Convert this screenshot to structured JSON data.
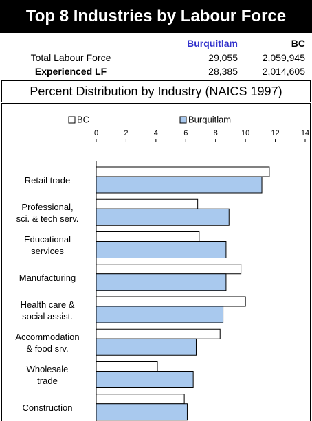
{
  "title": "Top 8 Industries by Labour Force",
  "table": {
    "columns": [
      "Burquitlam",
      "BC"
    ],
    "rows": [
      [
        "Total Labour Force",
        "29,055",
        "2,059,945"
      ],
      [
        "Experienced LF",
        "28,385",
        "2,014,605"
      ]
    ]
  },
  "section_title": "Percent Distribution by Industry (NAICS 1997)",
  "chart_data": {
    "type": "hbar",
    "categories": [
      "Retail trade",
      "Professional,\nsci. & tech serv.",
      "Educational\nservices",
      "Manufacturing",
      "Health care &\nsocial assist.",
      "Accommodation\n& food srv.",
      "Wholesale\ntrade",
      "Construction"
    ],
    "series": [
      {
        "name": "BC",
        "color": "#ffffff",
        "values": [
          11.6,
          6.8,
          6.9,
          9.7,
          10.0,
          8.3,
          4.1,
          5.9
        ]
      },
      {
        "name": "Burquitlam",
        "color": "#a9c9ee",
        "values": [
          11.1,
          8.9,
          8.7,
          8.7,
          8.5,
          6.7,
          6.5,
          6.1
        ]
      }
    ],
    "xlim": [
      0,
      14
    ],
    "xticks": [
      0,
      2,
      4,
      6,
      8,
      10,
      12,
      14
    ],
    "legend": "top"
  }
}
